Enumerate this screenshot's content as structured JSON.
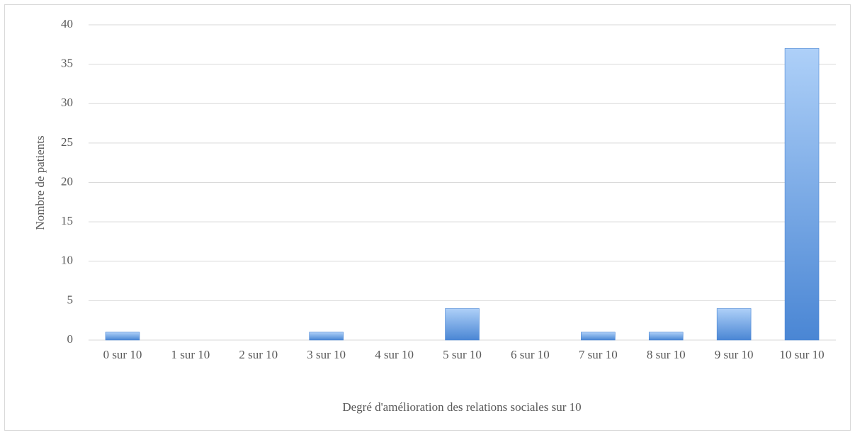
{
  "chart_data": {
    "type": "bar",
    "categories": [
      "0 sur 10",
      "1 sur 10",
      "2 sur 10",
      "3 sur 10",
      "4 sur 10",
      "5 sur 10",
      "6 sur 10",
      "7 sur 10",
      "8 sur 10",
      "9 sur 10",
      "10 sur 10"
    ],
    "values": [
      1,
      0,
      0,
      1,
      0,
      4,
      0,
      1,
      1,
      4,
      37
    ],
    "color": "#4a86d4",
    "ylim": [
      0,
      40
    ],
    "yticks": [
      0,
      5,
      10,
      15,
      20,
      25,
      30,
      35,
      40
    ],
    "grid": true,
    "xlabel": "Degré d'amélioration des relations sociales sur 10",
    "ylabel": "Nombre de patients"
  }
}
